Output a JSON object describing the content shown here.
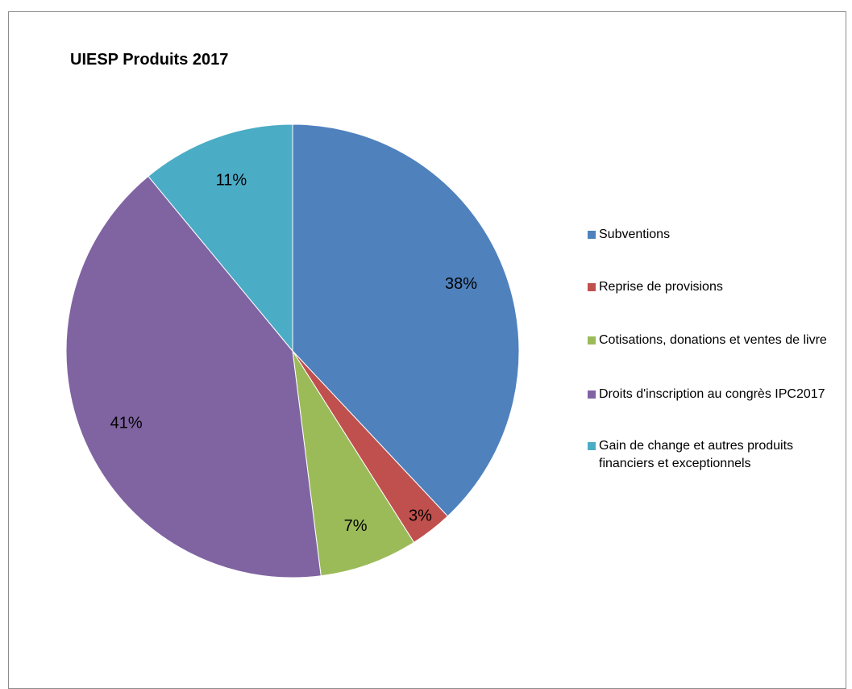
{
  "chart_data": {
    "type": "pie",
    "title": "UIESP Produits 2017",
    "categories": [
      "Subventions",
      "Reprise de provisions",
      "Cotisations, donations et ventes de livre",
      "Droits d'inscription au congrès IPC2017",
      "Gain de change et autres produits financiers et exceptionnels"
    ],
    "values": [
      38,
      3,
      7,
      41,
      11
    ],
    "value_labels": [
      "38%",
      "3%",
      "7%",
      "41%",
      "11%"
    ],
    "colors": [
      "#4f81bd",
      "#c0504d",
      "#9bbb59",
      "#8064a2",
      "#4bacc6"
    ],
    "legend_position": "right"
  }
}
